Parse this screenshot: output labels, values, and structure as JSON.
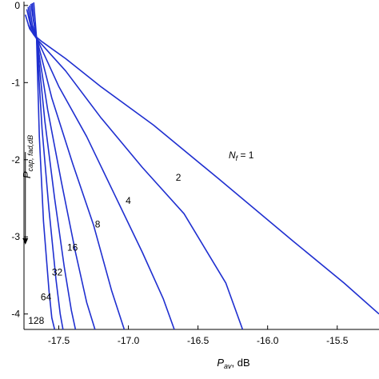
{
  "chart_data": {
    "type": "line",
    "xlabel_main": "P",
    "xlabel_sub": "av",
    "xlabel_unit": ", dB",
    "ylabel_main": "P",
    "ylabel_sub": "cap, fad,dB",
    "xlim": [
      -17.75,
      -15.2
    ],
    "ylim": [
      -4.2,
      0.05
    ],
    "x_ticks": [
      {
        "value": -17.5,
        "label": "-17.5"
      },
      {
        "value": -17.0,
        "label": "-17.0"
      },
      {
        "value": -16.5,
        "label": "-16.5"
      },
      {
        "value": -16.0,
        "label": "-16.0"
      },
      {
        "value": -15.5,
        "label": "-15.5"
      }
    ],
    "y_ticks": [
      {
        "value": 0,
        "label": "0"
      },
      {
        "value": -1,
        "label": "-1"
      },
      {
        "value": -2,
        "label": "-2"
      },
      {
        "value": -3,
        "label": "-3"
      },
      {
        "value": -4,
        "label": "-4"
      }
    ],
    "line_color": "#1f2fd0",
    "series": [
      {
        "name": "N_f = 1",
        "label_prefix": "N",
        "label_sub": "f",
        "label_suffix": " = 1",
        "label_at": [
          -16.28,
          -1.98
        ],
        "x": [
          -17.72,
          -17.68,
          -17.62,
          -17.45,
          -17.2,
          -16.82,
          -16.35,
          -15.82,
          -15.45,
          -15.2
        ],
        "y": [
          -0.25,
          -0.38,
          -0.47,
          -0.69,
          -1.05,
          -1.55,
          -2.25,
          -3.05,
          -3.6,
          -4.0
        ]
      },
      {
        "name": "2",
        "label": "2",
        "label_at": [
          -16.66,
          -2.27
        ],
        "x": [
          -17.74,
          -17.71,
          -17.66,
          -17.45,
          -17.2,
          -16.9,
          -16.6,
          -16.3,
          -16.18
        ],
        "y": [
          -0.12,
          -0.3,
          -0.43,
          -0.85,
          -1.45,
          -2.1,
          -2.7,
          -3.6,
          -4.2
        ]
      },
      {
        "name": "4",
        "label": "4",
        "label_at": [
          -17.02,
          -2.57
        ],
        "x": [
          -17.73,
          -17.7,
          -17.66,
          -17.5,
          -17.3,
          -17.1,
          -16.9,
          -16.75,
          -16.67
        ],
        "y": [
          -0.05,
          -0.28,
          -0.42,
          -1.05,
          -1.7,
          -2.45,
          -3.2,
          -3.8,
          -4.2
        ]
      },
      {
        "name": "8",
        "label": "8",
        "label_at": [
          -17.24,
          -2.88
        ],
        "x": [
          -17.72,
          -17.7,
          -17.66,
          -17.55,
          -17.4,
          -17.25,
          -17.12,
          -17.03
        ],
        "y": [
          -0.02,
          -0.25,
          -0.42,
          -1.2,
          -2.05,
          -2.85,
          -3.7,
          -4.2
        ]
      },
      {
        "name": "16",
        "label": "16",
        "label_at": [
          -17.44,
          -3.18
        ],
        "x": [
          -17.71,
          -17.69,
          -17.66,
          -17.58,
          -17.48,
          -17.38,
          -17.3,
          -17.24
        ],
        "y": [
          0.0,
          -0.25,
          -0.42,
          -1.35,
          -2.3,
          -3.2,
          -3.85,
          -4.2
        ]
      },
      {
        "name": "32",
        "label": "32",
        "label_at": [
          -17.55,
          -3.5
        ],
        "x": [
          -17.7,
          -17.68,
          -17.66,
          -17.6,
          -17.53,
          -17.46,
          -17.41,
          -17.38
        ],
        "y": [
          0.02,
          -0.22,
          -0.42,
          -1.5,
          -2.5,
          -3.4,
          -3.95,
          -4.2
        ]
      },
      {
        "name": "64",
        "label": "64",
        "label_at": [
          -17.63,
          -3.82
        ],
        "x": [
          -17.69,
          -17.68,
          -17.66,
          -17.62,
          -17.57,
          -17.52,
          -17.49,
          -17.47
        ],
        "y": [
          0.03,
          -0.2,
          -0.42,
          -1.6,
          -2.65,
          -3.55,
          -4.0,
          -4.2
        ]
      },
      {
        "name": "128",
        "label": "128",
        "label_at": [
          -17.72,
          -4.13
        ],
        "x": [
          -17.68,
          -17.67,
          -17.66,
          -17.64,
          -17.61,
          -17.57,
          -17.55,
          -17.53
        ],
        "y": [
          0.04,
          -0.18,
          -0.42,
          -1.7,
          -2.8,
          -3.7,
          -4.05,
          -4.2
        ]
      }
    ],
    "arrow_x": -17.74,
    "arrow_y_from": -1.9,
    "arrow_y_to": -3.1
  }
}
